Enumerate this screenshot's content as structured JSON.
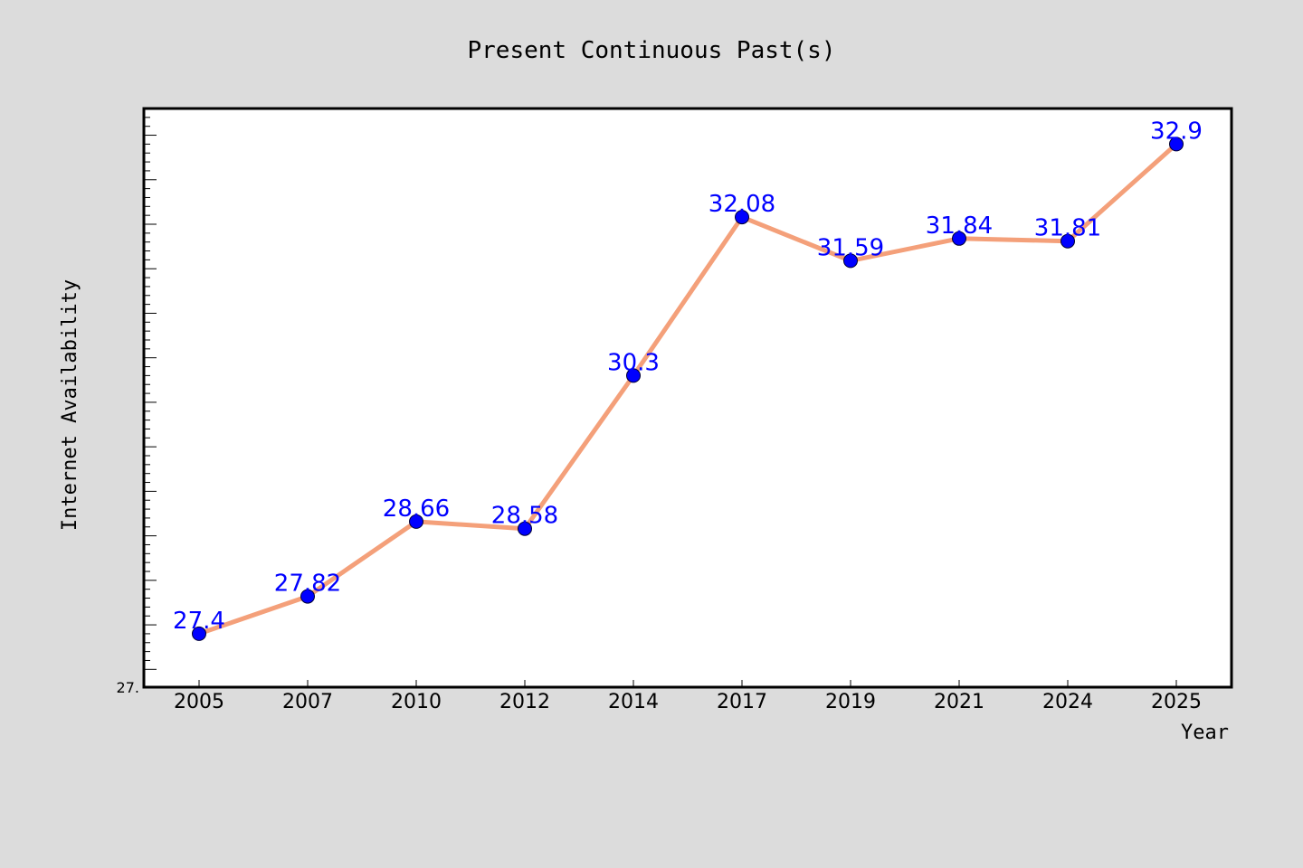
{
  "colors": {
    "background": "#dcdcdc",
    "plot_background": "#ffffff",
    "line": "#f4a07a",
    "marker": "#0000ff",
    "data_label": "#0000ff"
  },
  "chart_data": {
    "type": "line",
    "title": "Present Continuous Past(s)",
    "xlabel": "Year",
    "ylabel": "Internet Availability",
    "categories": [
      "2005",
      "2007",
      "2010",
      "2012",
      "2014",
      "2017",
      "2019",
      "2021",
      "2024",
      "2025"
    ],
    "series": [
      {
        "values": [
          27.4,
          27.82,
          28.66,
          28.58,
          30.3,
          32.08,
          31.59,
          31.84,
          31.81,
          32.9
        ],
        "labels": [
          "27.4",
          "27.82",
          "28.66",
          "28.58",
          "30.3",
          "32.08",
          "31.59",
          "31.84",
          "31.81",
          "32.9"
        ]
      }
    ],
    "ylim": [
      26.8,
      33.3
    ],
    "y_tick_labels": [
      "27."
    ],
    "grid": false,
    "legend": "none"
  }
}
